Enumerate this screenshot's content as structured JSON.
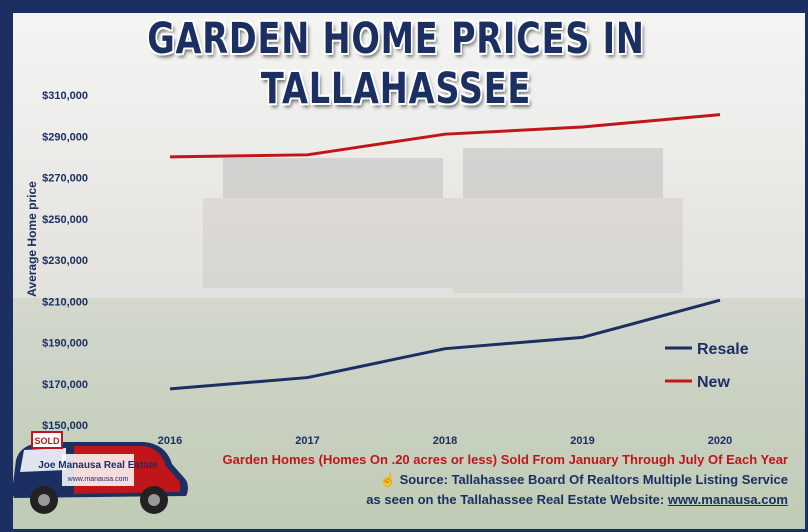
{
  "title": "GARDEN HOME PRICES IN TALLAHASSEE",
  "colors": {
    "navy": "#1b2f63",
    "red": "#c0161a"
  },
  "footer": {
    "line1": "Garden Homes (Homes On .20 acres or less) Sold From January Through July Of Each Year",
    "line2": "Source: Tallahassee Board Of Realtors Multiple Listing Service",
    "line3_prefix": "as seen on the Tallahassee Real Estate Website: ",
    "line3_url": "www.manausa.com",
    "source_icon": "hand-pointer-icon"
  },
  "logo": {
    "sign_text": "SOLD",
    "brand_text": "Joe Manausa Real Estate",
    "url": "www.manausa.com"
  },
  "chart_data": {
    "type": "line",
    "x": [
      "2016",
      "2017",
      "2018",
      "2019",
      "2020"
    ],
    "ylabel": "Average Home price",
    "xlabel": "",
    "ylim": [
      150000,
      310000
    ],
    "yticks": [
      150000,
      170000,
      190000,
      210000,
      230000,
      250000,
      270000,
      290000,
      310000
    ],
    "ytick_labels": [
      "$150,000",
      "$170,000",
      "$190,000",
      "$210,000",
      "$230,000",
      "$250,000",
      "$270,000",
      "$290,000",
      "$310,000"
    ],
    "grid": false,
    "legend_position": "bottom-right",
    "series": [
      {
        "name": "Resale",
        "color": "#1b2f63",
        "values": [
          167500,
          173000,
          187000,
          192500,
          210500
        ]
      },
      {
        "name": "New",
        "color": "#c0161a",
        "values": [
          280000,
          281000,
          291000,
          294500,
          300500
        ]
      }
    ]
  }
}
